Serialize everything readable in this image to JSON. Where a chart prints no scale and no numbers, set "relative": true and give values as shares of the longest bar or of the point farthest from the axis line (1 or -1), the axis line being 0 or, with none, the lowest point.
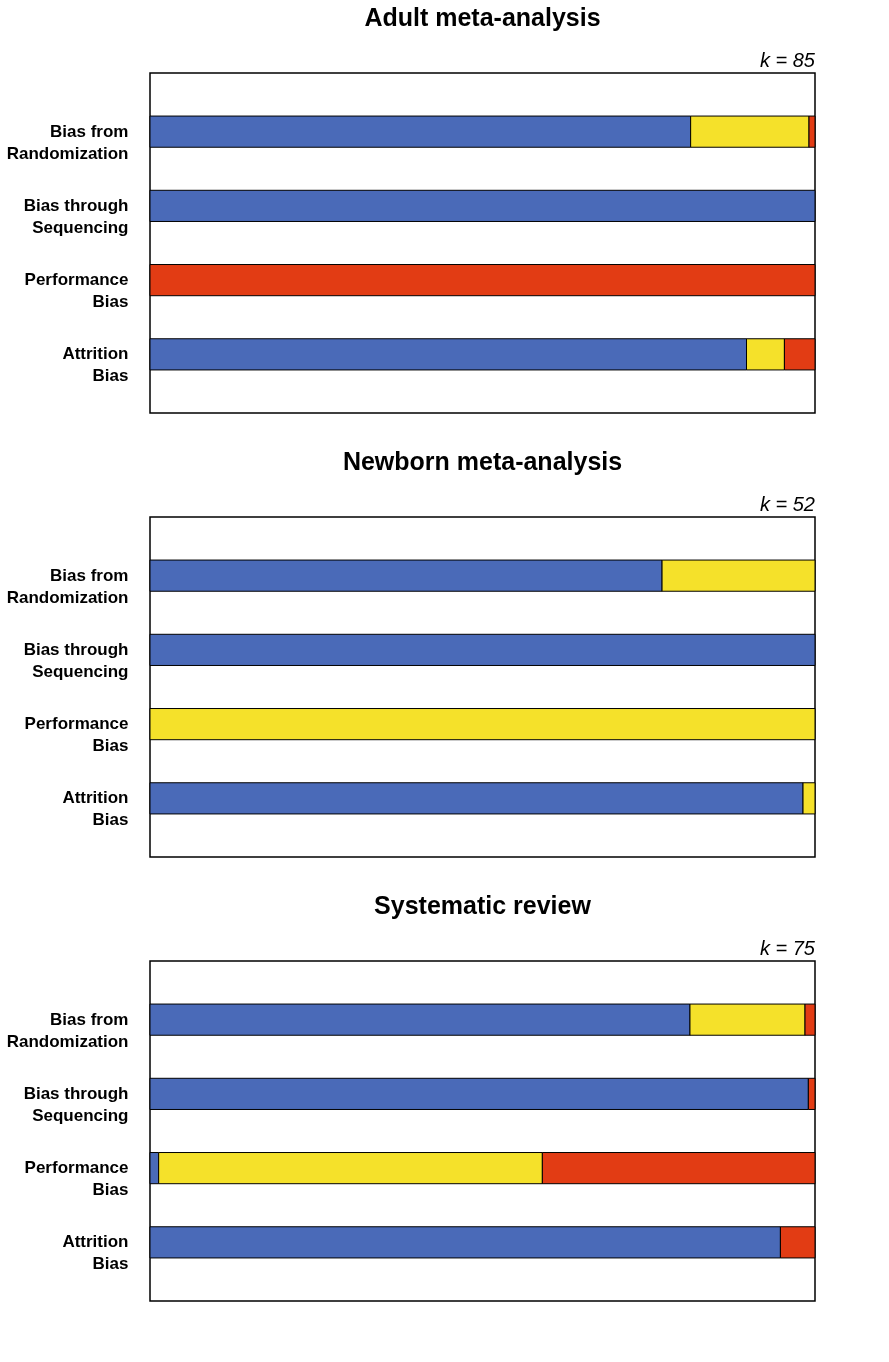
{
  "chart_data": [
    {
      "type": "bar",
      "orientation": "horizontal",
      "stacked": true,
      "relative": true,
      "title": "Adult meta-analysis",
      "annotations": [
        "k = 85"
      ],
      "categories": [
        "Bias from Randomization",
        "Bias through Sequencing",
        "Performance Bias",
        "Attrition Bias"
      ],
      "series": [
        {
          "color": "#4a6ab8",
          "values": [
            0.813,
            1,
            null,
            0.897
          ]
        },
        {
          "color": "#f5e12a",
          "values": [
            0.178,
            null,
            null,
            0.057
          ]
        },
        {
          "color": "#e23c14",
          "values": [
            0.009,
            null,
            1,
            0.046
          ]
        }
      ]
    },
    {
      "type": "bar",
      "orientation": "horizontal",
      "stacked": true,
      "relative": true,
      "title": "Newborn meta-analysis",
      "annotations": [
        "k = 52"
      ],
      "categories": [
        "Bias from Randomization",
        "Bias through Sequencing",
        "Performance Bias",
        "Attrition Bias"
      ],
      "series": [
        {
          "color": "#4a6ab8",
          "values": [
            0.77,
            1,
            null,
            0.982
          ]
        },
        {
          "color": "#f5e12a",
          "values": [
            0.23,
            null,
            1,
            0.018
          ]
        },
        {
          "color": "#e23c14",
          "values": [
            null,
            null,
            null,
            null
          ]
        }
      ]
    },
    {
      "type": "bar",
      "orientation": "horizontal",
      "stacked": true,
      "relative": true,
      "title": "Systematic review",
      "annotations": [
        "k = 75"
      ],
      "categories": [
        "Bias from Randomization",
        "Bias through Sequencing",
        "Performance Bias",
        "Attrition Bias"
      ],
      "series": [
        {
          "color": "#4a6ab8",
          "values": [
            0.812,
            0.99,
            0.013,
            0.948
          ]
        },
        {
          "color": "#f5e12a",
          "values": [
            0.173,
            null,
            0.577,
            null
          ]
        },
        {
          "color": "#e23c14",
          "values": [
            0.015,
            0.01,
            0.41,
            0.052
          ]
        }
      ]
    }
  ]
}
